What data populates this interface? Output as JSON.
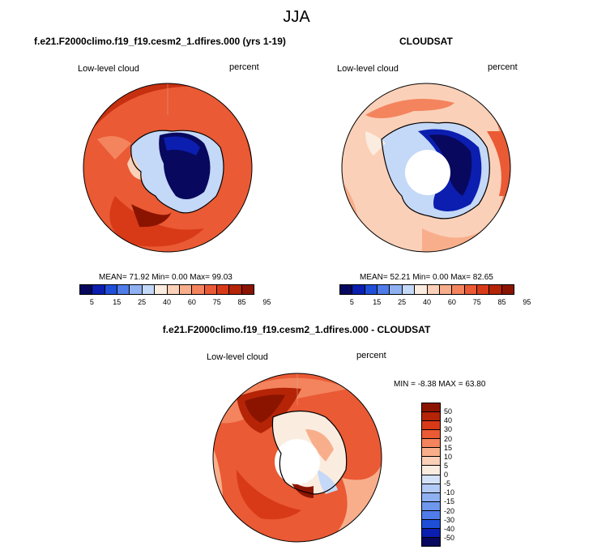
{
  "title": "JJA",
  "palette_main": [
    "#08085e",
    "#0b1eb0",
    "#1f4fd8",
    "#4f7ce8",
    "#8fb1f2",
    "#c4d8f7",
    "#fbece0",
    "#fbd0b8",
    "#f8ae8b",
    "#f3845d",
    "#ea5a34",
    "#d83a18",
    "#b52406",
    "#8b1400"
  ],
  "palette_diff": [
    "#08085e",
    "#0b1eb0",
    "#1f4fd8",
    "#4f7ce8",
    "#6f97ec",
    "#8fb1f2",
    "#b2caf5",
    "#d4e2f9",
    "#fbece0",
    "#fbd0b8",
    "#f8ae8b",
    "#f3845d",
    "#ea5a34",
    "#d83a18",
    "#b52406",
    "#8b1400"
  ],
  "panels": [
    {
      "title": "f.e21.F2000climo.f19_f19.cesm2_1.dfires.000 (yrs 1-19)",
      "variable": "Low-level cloud",
      "units": "percent",
      "stats": "MEAN=  71.92  Min=   0.00  Max=  99.03",
      "colorbar_ticks": [
        "5",
        "15",
        "25",
        "40",
        "60",
        "75",
        "85",
        "95"
      ]
    },
    {
      "title": "CLOUDSAT",
      "variable": "Low-level cloud",
      "units": "percent",
      "stats": "MEAN=  52.21  Min=   0.00  Max=  82.65",
      "colorbar_ticks": [
        "5",
        "15",
        "25",
        "40",
        "60",
        "75",
        "85",
        "95"
      ]
    },
    {
      "title": "f.e21.F2000climo.f19_f19.cesm2_1.dfires.000 - CLOUDSAT",
      "variable": "Low-level cloud",
      "units": "percent",
      "stats": "MIN =  -8.38 MAX =  63.80",
      "colorbar_ticks": [
        "50",
        "40",
        "30",
        "20",
        "15",
        "10",
        "5",
        "0",
        "-5",
        "-10",
        "-15",
        "-20",
        "-30",
        "-40",
        "-50"
      ]
    }
  ]
}
